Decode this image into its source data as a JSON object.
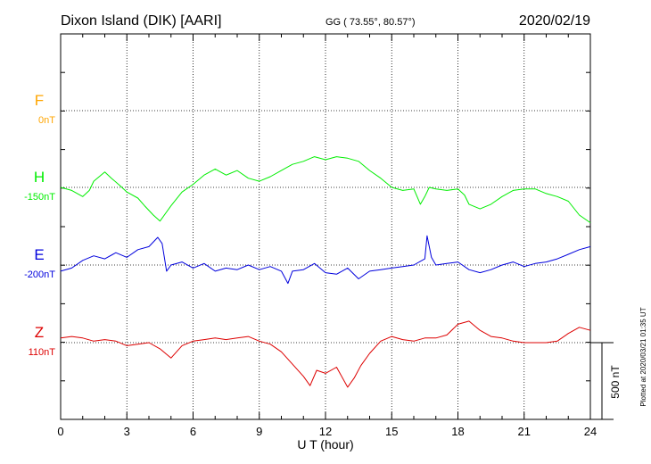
{
  "header": {
    "station": "Dixon Island (DIK)  [AARI]",
    "coords": "GG ( 73.55°,  80.57°)",
    "date": "2020/02/19"
  },
  "footer": {
    "plotted": "Plotted at 2020/03/21 01:35 UT"
  },
  "scale_label": "500 nT",
  "chart_data": {
    "type": "line",
    "xlabel": "U T (hour)",
    "xlim": [
      0,
      24
    ],
    "x_ticks": [
      "0",
      "3",
      "6",
      "9",
      "12",
      "15",
      "18",
      "21",
      "24"
    ],
    "grid": true,
    "units": "nT",
    "scale_bar_nT": 500,
    "series": [
      {
        "name": "F",
        "offset_label": "0nT",
        "color": "#ffa500",
        "x": [],
        "values": []
      },
      {
        "name": "H",
        "offset_label": "-150nT",
        "color": "#00ee00",
        "x": [
          0,
          0.5,
          1.0,
          1.3,
          1.5,
          2.0,
          2.3,
          2.7,
          3.0,
          3.5,
          3.8,
          4.2,
          4.5,
          4.8,
          5.0,
          5.5,
          6.0,
          6.5,
          7.0,
          7.5,
          8.0,
          8.5,
          9.0,
          9.5,
          10.0,
          10.5,
          11.0,
          11.5,
          12.0,
          12.5,
          13.0,
          13.5,
          14.0,
          14.5,
          15.0,
          15.5,
          16.0,
          16.3,
          16.5,
          16.7,
          17.0,
          17.5,
          18.0,
          18.3,
          18.5,
          19.0,
          19.5,
          20.0,
          20.5,
          21.0,
          21.5,
          22.0,
          22.5,
          23.0,
          23.5,
          24.0
        ],
        "values": [
          0,
          -20,
          -60,
          -20,
          40,
          100,
          60,
          10,
          -30,
          -70,
          -120,
          -180,
          -220,
          -160,
          -120,
          -30,
          20,
          80,
          120,
          80,
          110,
          60,
          40,
          70,
          110,
          150,
          170,
          200,
          180,
          200,
          190,
          170,
          110,
          60,
          0,
          -20,
          -10,
          -110,
          -60,
          0,
          -10,
          -20,
          -10,
          -50,
          -110,
          -140,
          -110,
          -60,
          -20,
          -10,
          -10,
          -40,
          -60,
          -90,
          -180,
          -230
        ]
      },
      {
        "name": "E",
        "offset_label": "-200nT",
        "color": "#0000dd",
        "x": [
          0,
          0.5,
          1.0,
          1.5,
          2.0,
          2.5,
          3.0,
          3.5,
          4.0,
          4.4,
          4.6,
          4.8,
          5.0,
          5.5,
          6.0,
          6.5,
          7.0,
          7.5,
          8.0,
          8.5,
          9.0,
          9.5,
          10.0,
          10.3,
          10.5,
          11.0,
          11.5,
          12.0,
          12.5,
          13.0,
          13.5,
          14.0,
          14.5,
          15.0,
          15.5,
          16.0,
          16.5,
          16.6,
          16.8,
          17.0,
          17.5,
          18.0,
          18.5,
          19.0,
          19.5,
          20.0,
          20.5,
          21.0,
          21.5,
          22.0,
          22.5,
          23.0,
          23.5,
          24.0
        ],
        "values": [
          -40,
          -20,
          30,
          60,
          40,
          80,
          50,
          100,
          120,
          180,
          140,
          -40,
          0,
          20,
          -20,
          10,
          -40,
          -20,
          -30,
          0,
          -30,
          -10,
          -40,
          -120,
          -40,
          -30,
          10,
          -50,
          -60,
          -20,
          -90,
          -40,
          -30,
          -20,
          -10,
          0,
          40,
          190,
          50,
          0,
          10,
          20,
          -30,
          -50,
          -30,
          0,
          20,
          -10,
          10,
          20,
          40,
          70,
          100,
          120
        ]
      },
      {
        "name": "Z",
        "offset_label": "110nT",
        "color": "#dd0000",
        "x": [
          0,
          0.5,
          1.0,
          1.5,
          2.0,
          2.5,
          3.0,
          3.5,
          4.0,
          4.5,
          5.0,
          5.5,
          6.0,
          6.5,
          7.0,
          7.5,
          8.0,
          8.5,
          9.0,
          9.5,
          10.0,
          10.5,
          11.0,
          11.3,
          11.6,
          12.0,
          12.5,
          13.0,
          13.3,
          13.6,
          14.0,
          14.5,
          15.0,
          15.5,
          16.0,
          16.5,
          17.0,
          17.5,
          18.0,
          18.5,
          19.0,
          19.5,
          20.0,
          20.5,
          21.0,
          21.5,
          22.0,
          22.5,
          23.0,
          23.5,
          24.0
        ],
        "values": [
          30,
          40,
          30,
          10,
          20,
          10,
          -20,
          -10,
          0,
          -40,
          -100,
          -20,
          10,
          20,
          30,
          20,
          30,
          40,
          10,
          -10,
          -60,
          -140,
          -220,
          -280,
          -180,
          -200,
          -160,
          -290,
          -230,
          -150,
          -70,
          10,
          40,
          20,
          10,
          30,
          30,
          50,
          120,
          140,
          80,
          40,
          30,
          10,
          0,
          0,
          0,
          10,
          60,
          100,
          80
        ]
      }
    ]
  }
}
